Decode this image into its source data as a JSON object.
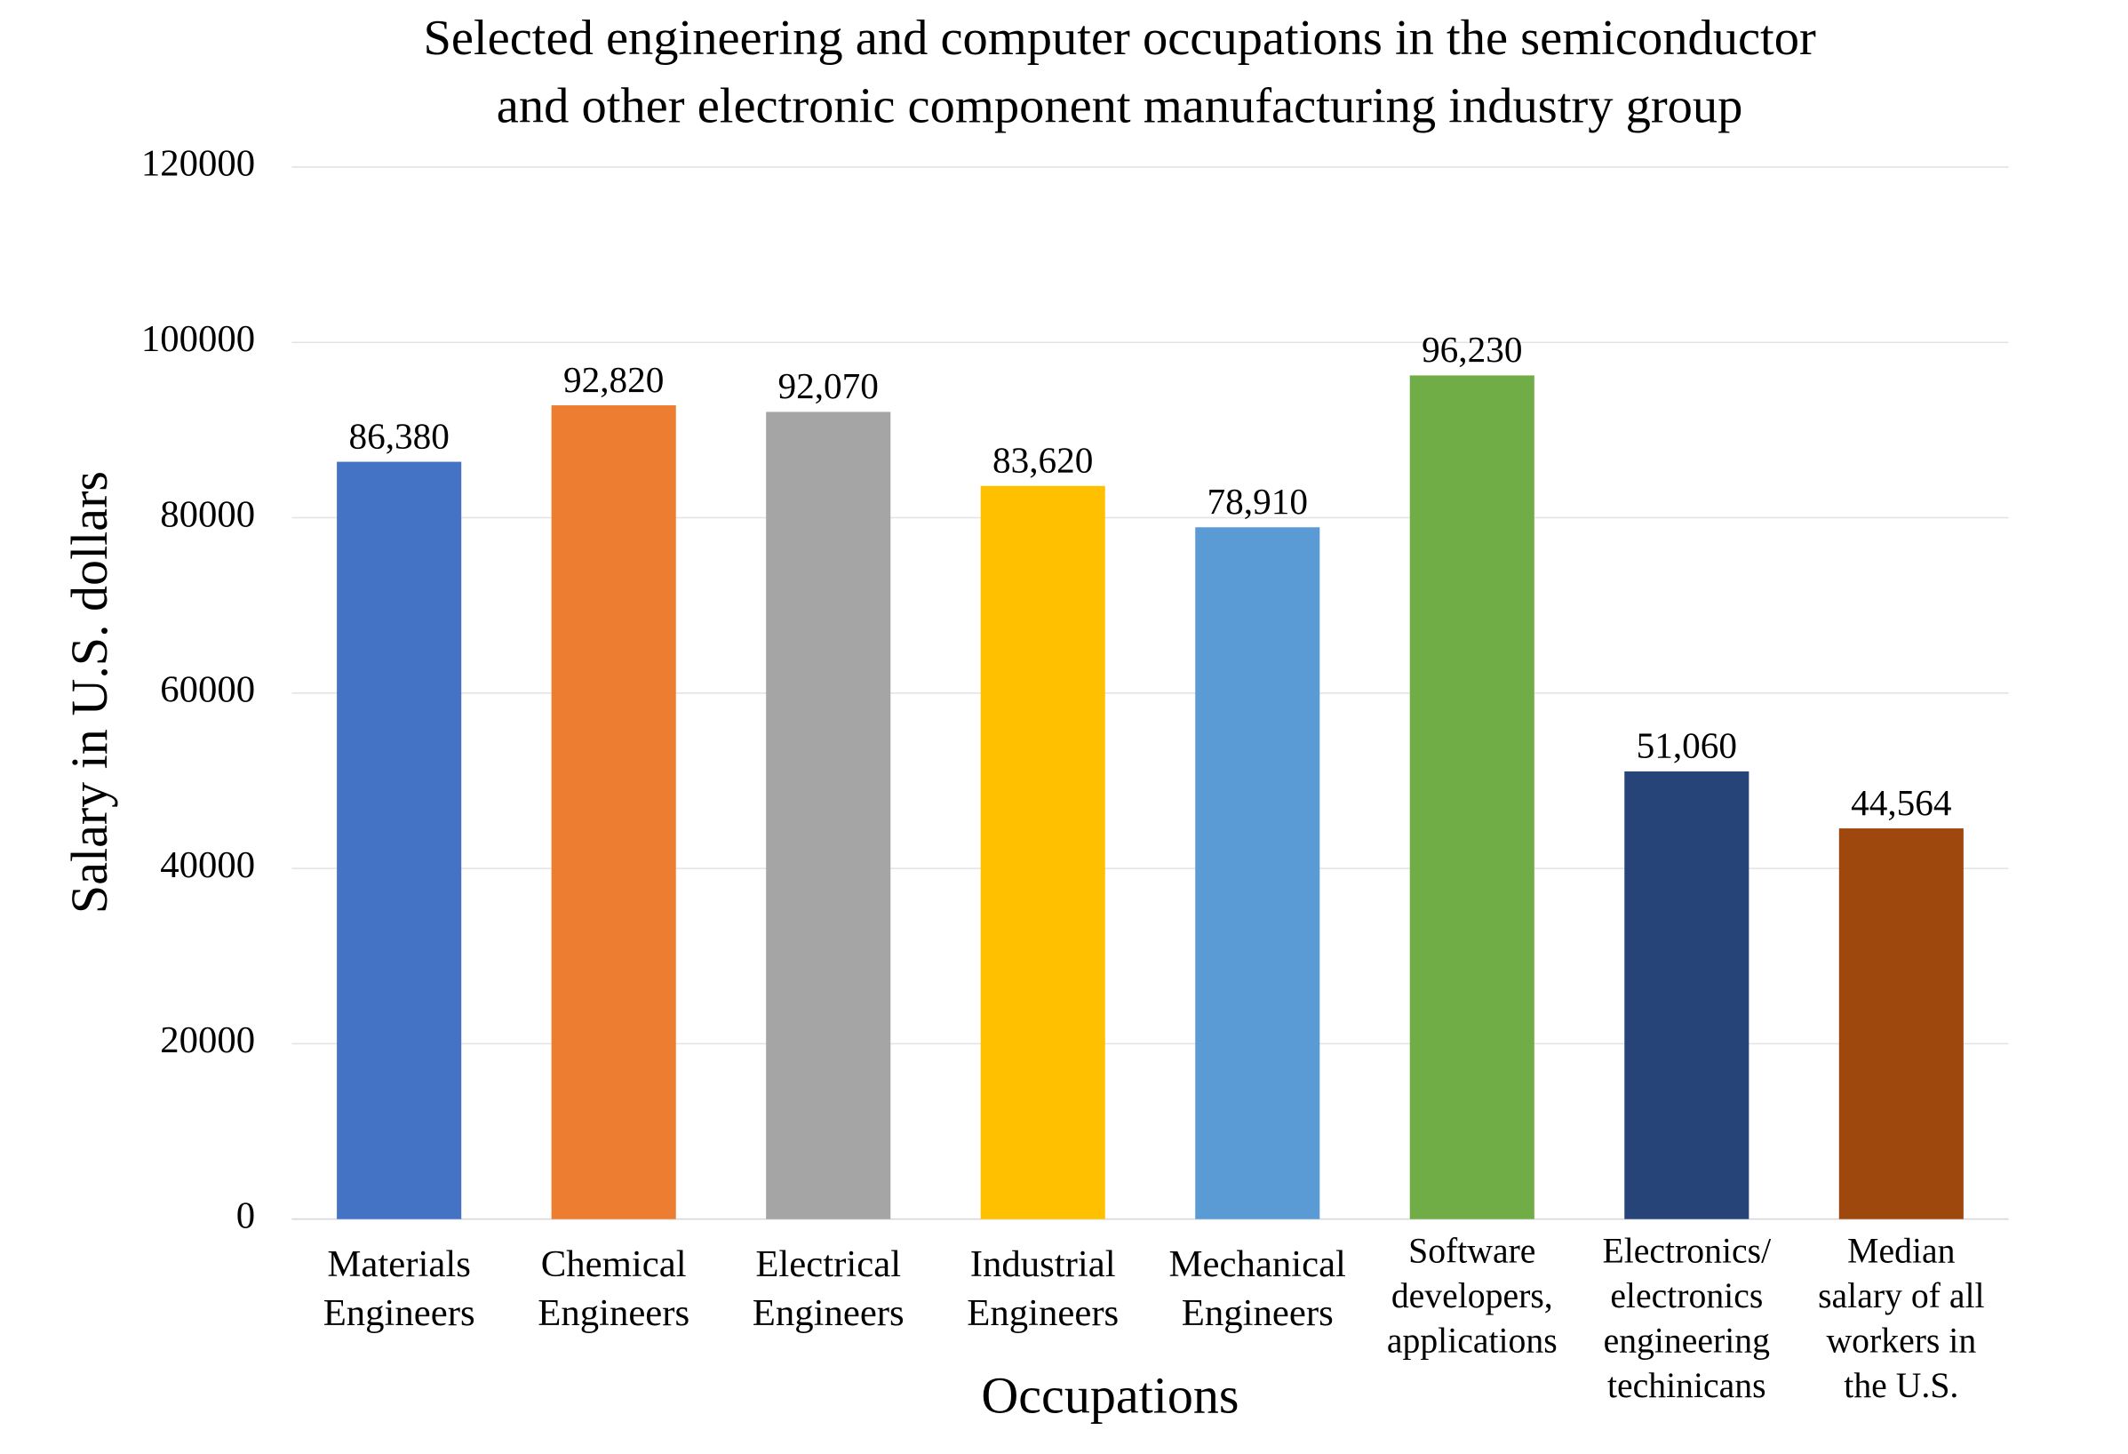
{
  "chart_data": {
    "type": "bar",
    "title": "Selected engineering and computer occupations in the semiconductor\nand other electronic component manufacturing industry group",
    "x_label": "Occupations",
    "y_label": "Salary in U.S. dollars",
    "categories": [
      "Materials\nEngineers",
      "Chemical\nEngineers",
      "Electrical\nEngineers",
      "Industrial\nEngineers",
      "Mechanical\nEngineers",
      "Software\ndevelopers,\napplications",
      "Electronics/\nelectronics\nengineering\ntechinicans",
      "Median\nsalary of all\nworkers in\nthe U.S."
    ],
    "values": [
      86380,
      92820,
      92070,
      83620,
      78910,
      96230,
      51060,
      44564
    ],
    "value_labels": [
      "86,380",
      "92,820",
      "92,070",
      "83,620",
      "78,910",
      "96,230",
      "51,060",
      "44,564"
    ],
    "colors": [
      "#4472c4",
      "#ed7d31",
      "#a5a5a5",
      "#ffc000",
      "#5b9bd5",
      "#70ad47",
      "#264478",
      "#9e480e"
    ],
    "ylim": [
      0,
      120000
    ],
    "yticks": [
      0,
      20000,
      40000,
      60000,
      80000,
      100000,
      120000
    ],
    "grid": true
  }
}
